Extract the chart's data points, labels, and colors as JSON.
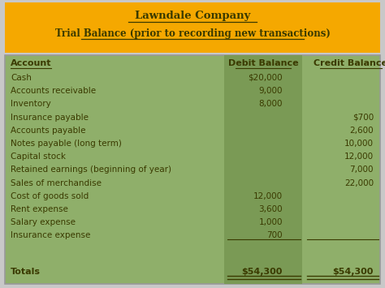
{
  "title_line1": "Lawndale Company",
  "title_line2": "Trial Balance (prior to recording new transactions)",
  "header_bg": "#F5A800",
  "table_bg": "#8FAF6A",
  "col_mid_bg": "#7A9A55",
  "outer_bg": "#C8C8C8",
  "text_color": "#3A3A00",
  "col_headers": [
    "Account",
    "Debit Balance",
    "Credit Balance"
  ],
  "rows": [
    [
      "Cash",
      "$20,000",
      ""
    ],
    [
      "Accounts receivable",
      "9,000",
      ""
    ],
    [
      "Inventory",
      "8,000",
      ""
    ],
    [
      "Insurance payable",
      "",
      "$700"
    ],
    [
      "Accounts payable",
      "",
      "2,600"
    ],
    [
      "Notes payable (long term)",
      "",
      "10,000"
    ],
    [
      "Capital stock",
      "",
      "12,000"
    ],
    [
      "Retained earnings (beginning of year)",
      "",
      "7,000"
    ],
    [
      "Sales of merchandise",
      "",
      "22,000"
    ],
    [
      "Cost of goods sold",
      "12,000",
      ""
    ],
    [
      "Rent expense",
      "3,600",
      ""
    ],
    [
      "Salary expense",
      "1,000",
      ""
    ],
    [
      "Insurance expense",
      "700",
      ""
    ]
  ],
  "totals_label": "Totals",
  "totals_debit": "$54,300",
  "totals_credit": "$54,300",
  "fig_width": 4.74,
  "fig_height": 3.55,
  "dpi": 100
}
